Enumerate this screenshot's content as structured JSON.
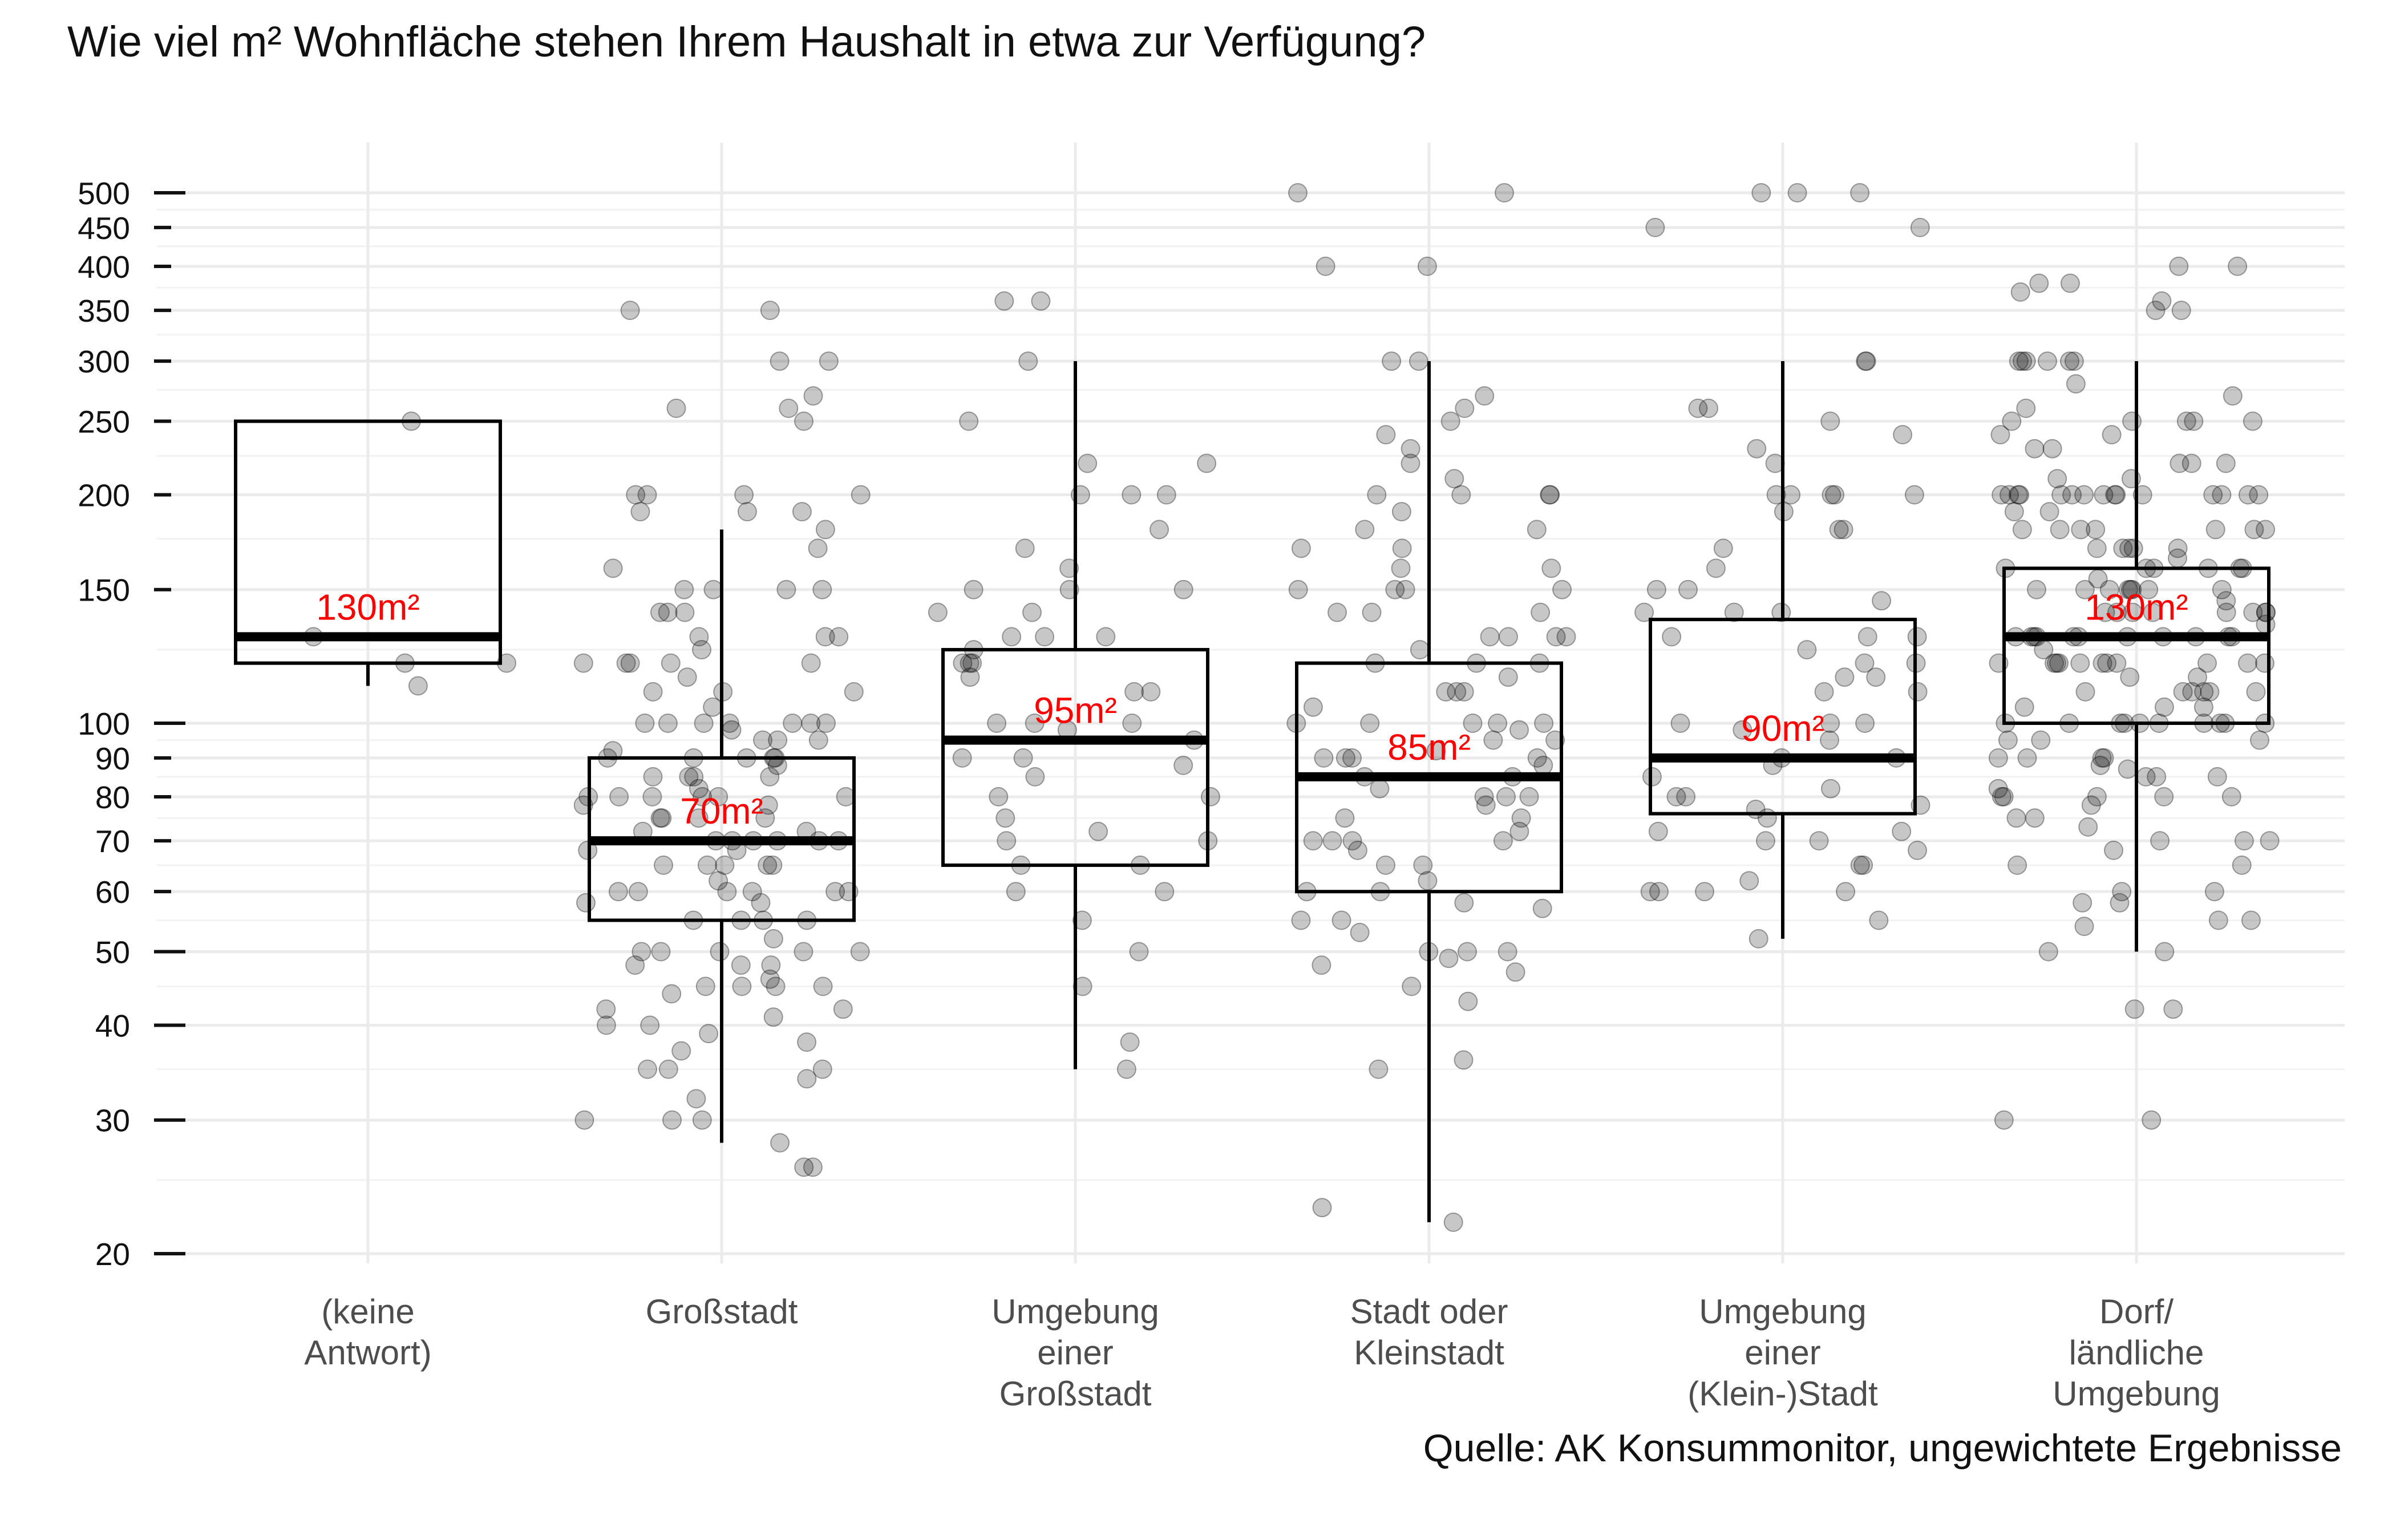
{
  "chart_data": {
    "type": "boxplot",
    "title": "Wie viel m² Wohnfläche stehen Ihrem Haushalt in etwa zur Verfügung?",
    "caption": "Quelle: AK Konsummonitor, ungewichtete Ergebnisse",
    "xlabel": "",
    "ylabel": "",
    "y_scale": "log",
    "ylim": [
      19,
      560
    ],
    "y_ticks": [
      20,
      30,
      40,
      50,
      60,
      70,
      80,
      90,
      100,
      150,
      200,
      250,
      300,
      350,
      400,
      450,
      500
    ],
    "grid": true,
    "categories": [
      [
        "(keine",
        "Antwort)"
      ],
      [
        "Großstadt"
      ],
      [
        "Umgebung",
        "einer",
        "Großstadt"
      ],
      [
        "Stadt oder",
        "Kleinstadt"
      ],
      [
        "Umgebung",
        "einer",
        "(Klein-)Stadt"
      ],
      [
        "Dorf/",
        "ländliche",
        "Umgebung"
      ]
    ],
    "boxes": [
      {
        "lower_whisker": 112,
        "q1": 120,
        "median": 130,
        "q3": 250,
        "upper_whisker": 250,
        "median_label": "130m²"
      },
      {
        "lower_whisker": 28,
        "q1": 55,
        "median": 70,
        "q3": 90,
        "upper_whisker": 180,
        "median_label": "70m²"
      },
      {
        "lower_whisker": 35,
        "q1": 65,
        "median": 95,
        "q3": 125,
        "upper_whisker": 300,
        "median_label": "95m²"
      },
      {
        "lower_whisker": 22,
        "q1": 60,
        "median": 85,
        "q3": 120,
        "upper_whisker": 300,
        "median_label": "85m²"
      },
      {
        "lower_whisker": 52,
        "q1": 76,
        "median": 90,
        "q3": 137,
        "upper_whisker": 300,
        "median_label": "90m²"
      },
      {
        "lower_whisker": 50,
        "q1": 100,
        "median": 130,
        "q3": 160,
        "upper_whisker": 300,
        "median_label": "130m²"
      }
    ],
    "points": [
      [
        250,
        130,
        120,
        120,
        112
      ],
      [
        350,
        350,
        300,
        300,
        270,
        260,
        260,
        250,
        200,
        200,
        200,
        190,
        190,
        180,
        170,
        160,
        150,
        150,
        150,
        140,
        140,
        130,
        130,
        130,
        125,
        120,
        120,
        120,
        120,
        115,
        110,
        110,
        105,
        100,
        100,
        100,
        100,
        100,
        100,
        98,
        95,
        95,
        92,
        90,
        90,
        90,
        90,
        88,
        85,
        85,
        85,
        82,
        80,
        80,
        80,
        80,
        80,
        78,
        78,
        75,
        75,
        75,
        72,
        72,
        70,
        70,
        70,
        70,
        70,
        68,
        68,
        65,
        65,
        65,
        65,
        62,
        60,
        60,
        60,
        60,
        60,
        58,
        58,
        55,
        55,
        55,
        52,
        50,
        50,
        50,
        50,
        48,
        48,
        46,
        45,
        45,
        45,
        42,
        42,
        40,
        40,
        39,
        38,
        35,
        35,
        35,
        34,
        32,
        30,
        30,
        30,
        28,
        26,
        26,
        200,
        190,
        150,
        140,
        120,
        110,
        100,
        95,
        90,
        85,
        80,
        75,
        70,
        65,
        60,
        55,
        50,
        48,
        45,
        44,
        41,
        37
      ],
      [
        360,
        360,
        300,
        250,
        220,
        220,
        200,
        200,
        200,
        180,
        170,
        160,
        150,
        150,
        150,
        140,
        140,
        130,
        130,
        120,
        120,
        120,
        115,
        110,
        110,
        100,
        100,
        100,
        98,
        95,
        90,
        90,
        88,
        85,
        80,
        80,
        75,
        72,
        70,
        70,
        65,
        65,
        60,
        60,
        55,
        50,
        45,
        38,
        35,
        130,
        125
      ],
      [
        500,
        500,
        400,
        400,
        300,
        300,
        270,
        260,
        250,
        240,
        230,
        220,
        210,
        200,
        200,
        200,
        200,
        190,
        180,
        180,
        170,
        170,
        160,
        160,
        150,
        150,
        150,
        150,
        140,
        140,
        140,
        130,
        130,
        130,
        130,
        125,
        120,
        120,
        120,
        115,
        110,
        110,
        110,
        105,
        100,
        100,
        100,
        100,
        100,
        98,
        95,
        95,
        92,
        90,
        90,
        90,
        90,
        88,
        85,
        85,
        82,
        80,
        80,
        80,
        78,
        75,
        75,
        72,
        70,
        70,
        70,
        70,
        68,
        65,
        65,
        62,
        60,
        60,
        58,
        57,
        55,
        55,
        53,
        50,
        50,
        50,
        49,
        48,
        47,
        45,
        43,
        36,
        35,
        23,
        22
      ],
      [
        500,
        500,
        500,
        450,
        450,
        300,
        300,
        260,
        260,
        250,
        240,
        230,
        220,
        200,
        200,
        200,
        200,
        200,
        190,
        180,
        180,
        170,
        160,
        150,
        150,
        145,
        140,
        140,
        140,
        130,
        130,
        130,
        125,
        120,
        120,
        115,
        115,
        110,
        110,
        100,
        100,
        100,
        98,
        95,
        90,
        90,
        88,
        85,
        82,
        80,
        80,
        78,
        77,
        75,
        72,
        72,
        70,
        70,
        68,
        65,
        65,
        62,
        60,
        60,
        60,
        60,
        55,
        52
      ],
      [
        400,
        400,
        380,
        380,
        370,
        360,
        350,
        350,
        300,
        300,
        300,
        300,
        300,
        300,
        280,
        270,
        260,
        250,
        250,
        250,
        250,
        250,
        240,
        240,
        230,
        230,
        220,
        220,
        220,
        210,
        210,
        200,
        200,
        200,
        200,
        200,
        200,
        200,
        200,
        200,
        200,
        200,
        200,
        200,
        200,
        200,
        190,
        190,
        180,
        180,
        180,
        180,
        180,
        180,
        180,
        170,
        170,
        170,
        170,
        170,
        165,
        160,
        160,
        160,
        160,
        160,
        160,
        155,
        150,
        150,
        150,
        150,
        150,
        150,
        150,
        150,
        145,
        140,
        140,
        140,
        140,
        140,
        140,
        140,
        140,
        135,
        130,
        130,
        130,
        130,
        130,
        130,
        130,
        130,
        130,
        130,
        130,
        125,
        120,
        120,
        120,
        120,
        120,
        120,
        120,
        120,
        120,
        120,
        120,
        115,
        115,
        110,
        110,
        110,
        110,
        110,
        110,
        105,
        105,
        105,
        100,
        100,
        100,
        100,
        100,
        100,
        100,
        100,
        100,
        100,
        95,
        95,
        95,
        90,
        90,
        90,
        90,
        88,
        87,
        85,
        85,
        85,
        82,
        80,
        80,
        80,
        80,
        80,
        78,
        75,
        75,
        73,
        70,
        70,
        70,
        68,
        65,
        65,
        60,
        60,
        58,
        58,
        55,
        55,
        54,
        50,
        50,
        42,
        42,
        30,
        30
      ]
    ]
  }
}
